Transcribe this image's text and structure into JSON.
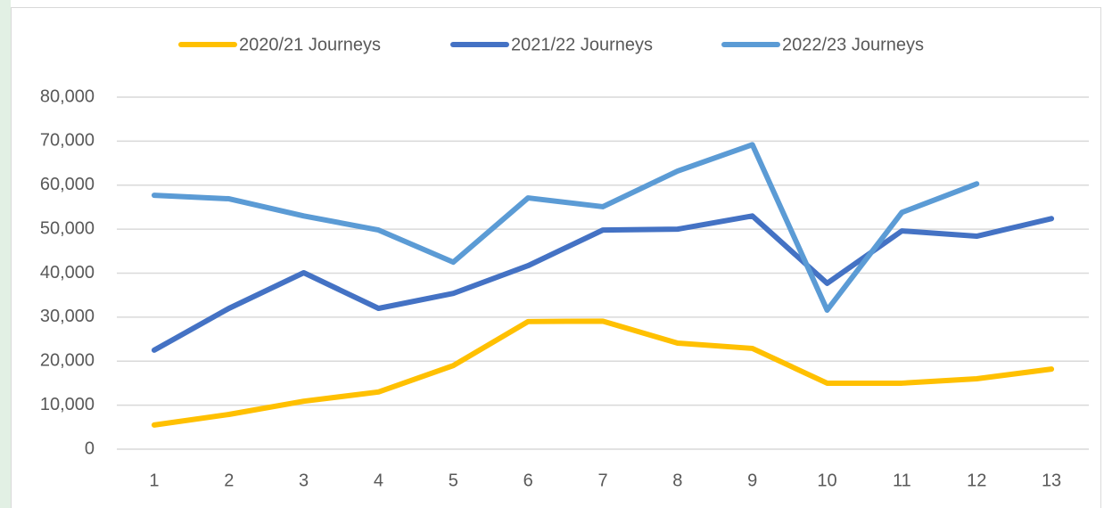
{
  "chart_data": {
    "type": "line",
    "categories": [
      "1",
      "2",
      "3",
      "4",
      "5",
      "6",
      "7",
      "8",
      "9",
      "10",
      "11",
      "12",
      "13"
    ],
    "series": [
      {
        "name": "2020/21 Journeys",
        "color": "#FFC000",
        "values": [
          5500,
          7900,
          10900,
          13000,
          19000,
          29000,
          29100,
          24100,
          22900,
          15000,
          15000,
          16000,
          18200
        ]
      },
      {
        "name": "2021/22 Journeys",
        "color": "#4472C4",
        "values": [
          22500,
          32000,
          40100,
          32000,
          35400,
          41700,
          49800,
          50000,
          53000,
          37700,
          49600,
          48400,
          52400
        ]
      },
      {
        "name": "2022/23 Journeys",
        "color": "#5B9BD5",
        "values": [
          57700,
          56900,
          53000,
          49800,
          42500,
          57100,
          55100,
          63200,
          69200,
          31600,
          53800,
          60300,
          null
        ]
      }
    ],
    "ylim": [
      0,
      80000
    ],
    "yticks": [
      0,
      {
        "value": 10000,
        "label": "10,000"
      },
      {
        "value": 20000,
        "label": "20,000"
      },
      {
        "value": 30000,
        "label": "30,000"
      },
      {
        "value": 40000,
        "label": "40,000"
      },
      {
        "value": 50000,
        "label": "50,000"
      },
      {
        "value": 60000,
        "label": "60,000"
      },
      {
        "value": 70000,
        "label": "70,000"
      },
      {
        "value": 80000,
        "label": "80,000"
      }
    ],
    "grid": true,
    "legend": "top"
  }
}
